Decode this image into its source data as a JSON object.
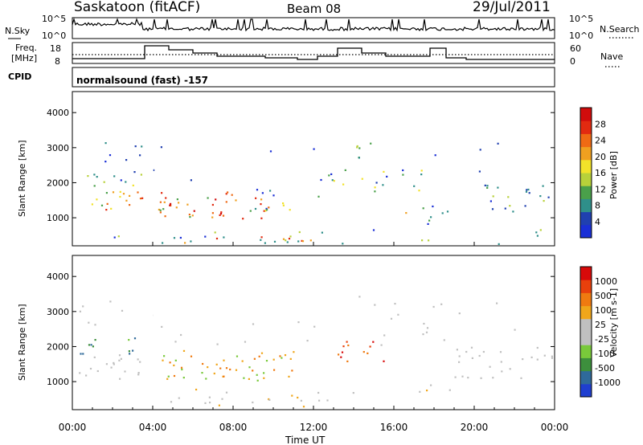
{
  "header": {
    "station": "Saskatoon (fitACF)",
    "beam": "Beam 08",
    "date": "29/Jul/2011"
  },
  "top_panels": {
    "nsky_label": "N.Sky",
    "nsky_ticks": [
      "10^5",
      "10^0"
    ],
    "nsearch_label": "N.Search",
    "nsearch_ticks": [
      "10^5",
      "10^0"
    ],
    "freq_label_1": "Freq.",
    "freq_label_2": "[MHz]",
    "freq_ticks": [
      "18",
      "8"
    ],
    "nave_label": "Nave",
    "nave_ticks": [
      "60",
      "0"
    ],
    "cpid_label": "CPID",
    "cpid_text": "normalsound (fast) -157"
  },
  "colors": {
    "power_scale": [
      "#1a2fd6",
      "#2040b0",
      "#2f8f8a",
      "#4aa04a",
      "#b8d13a",
      "#f2e22a",
      "#f0a020",
      "#ef6a14",
      "#e22a10",
      "#d10c0c"
    ],
    "velocity_scale": [
      "#1f3fd0",
      "#2f6a9a",
      "#3d8f3d",
      "#79c93a",
      "#c0c0c0",
      "#c0c0c0",
      "#f0a61a",
      "#f07a10",
      "#e8400c",
      "#d80a0a"
    ]
  },
  "chart_data": [
    {
      "type": "heatmap",
      "title": "Power",
      "ylabel": "Slant Range [km]",
      "yticks": [
        "1000",
        "2000",
        "3000",
        "4000"
      ],
      "ylim": [
        200,
        4600
      ],
      "colorbar_label": "Power [dB]",
      "colorbar_ticks": [
        "4",
        "8",
        "12",
        "16",
        "20",
        "24",
        "28"
      ],
      "colorbar_range": [
        0,
        32
      ]
    },
    {
      "type": "heatmap",
      "title": "Velocity",
      "ylabel": "Slant Range [km]",
      "yticks": [
        "1000",
        "2000",
        "3000",
        "4000"
      ],
      "ylim": [
        200,
        4600
      ],
      "colorbar_label": "Velocity [m s-1]",
      "colorbar_ticks": [
        "1000",
        "500",
        "100",
        "25",
        "-25",
        "-100",
        "-500",
        "-1000"
      ],
      "xlabel": "Time UT",
      "xticks": [
        "00:00",
        "04:00",
        "08:00",
        "12:00",
        "16:00",
        "20:00",
        "00:00"
      ],
      "xlim_hours": [
        0,
        24
      ]
    }
  ]
}
